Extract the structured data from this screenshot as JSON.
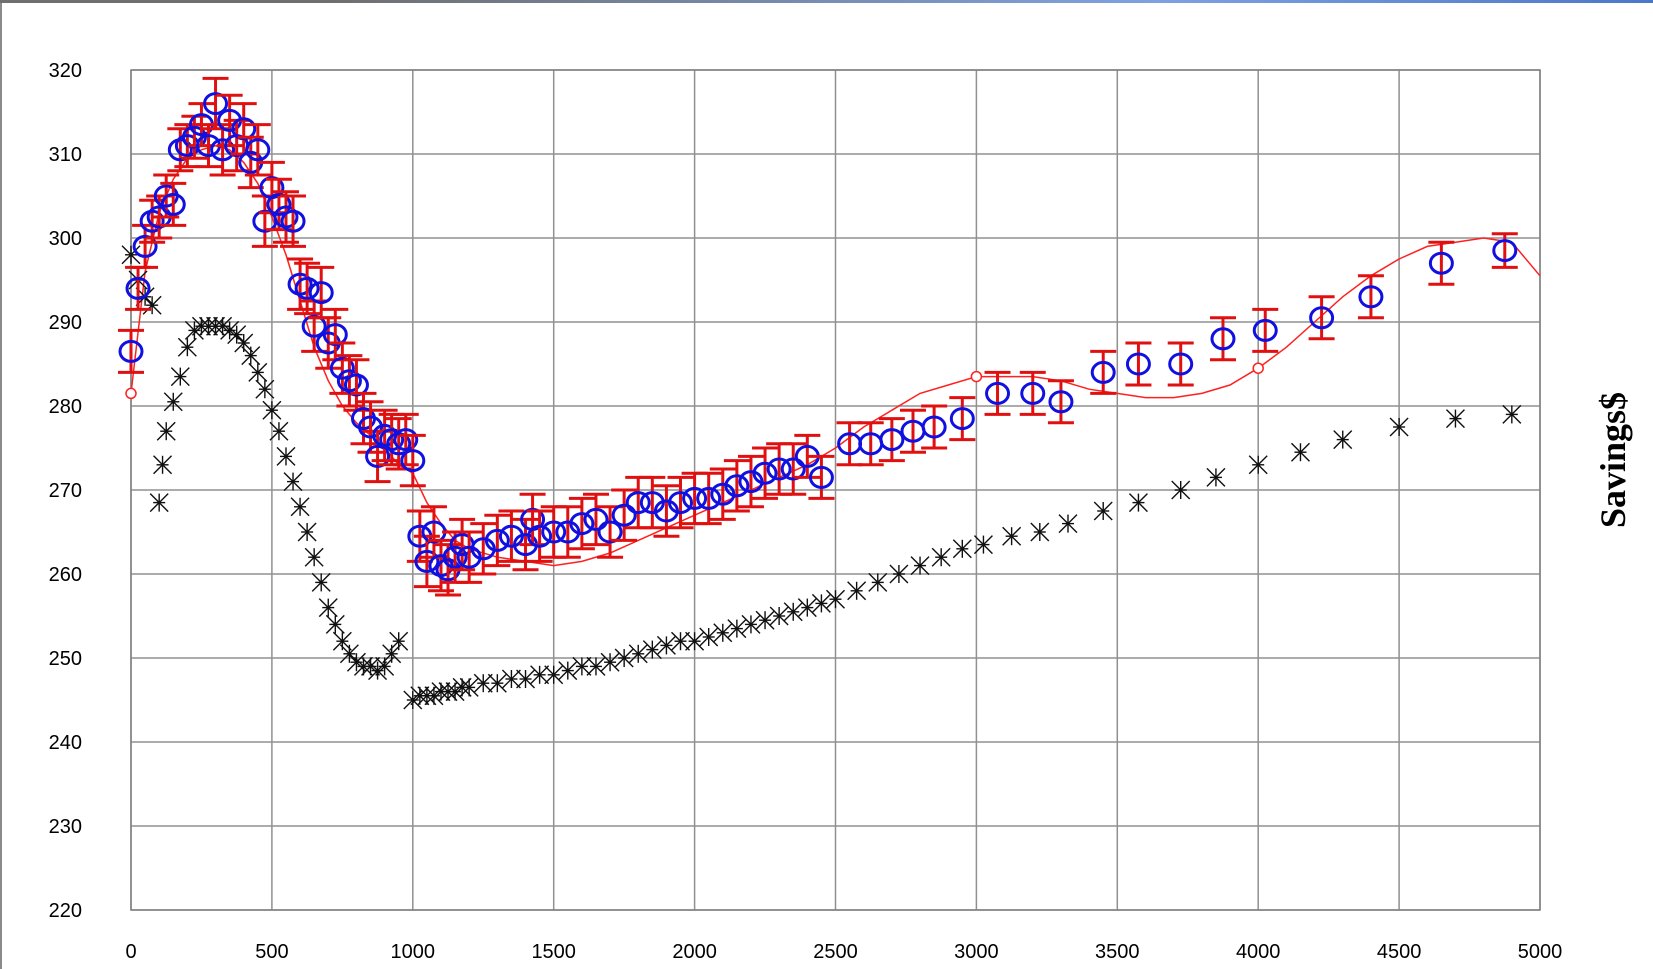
{
  "chart_data": {
    "type": "scatter",
    "ylabel": "Savings$",
    "xlabel": "",
    "title": "",
    "xlim": [
      0,
      5000
    ],
    "ylim": [
      220,
      320
    ],
    "x_ticks": [
      "0",
      "500",
      "1000",
      "1500",
      "2000",
      "2500",
      "3000",
      "3500",
      "4000",
      "4500",
      "5000"
    ],
    "y_ticks": [
      "320",
      "310",
      "300",
      "290",
      "280",
      "270",
      "260",
      "250",
      "240",
      "230",
      "220"
    ],
    "grid": true,
    "legend": "none",
    "colors": {
      "series_blue": "#1010e0",
      "errorbar_red": "#e01010",
      "series_black": "#101010",
      "fit_line": "#ff2020"
    },
    "series": [
      {
        "marker": "open-circle-with-red-error-bar",
        "color": "#1010e0",
        "points": [
          [
            0,
            286.5,
            2.5
          ],
          [
            25,
            294,
            2.5
          ],
          [
            50,
            299,
            2.5
          ],
          [
            75,
            302,
            2.5
          ],
          [
            100,
            302.5,
            2.5
          ],
          [
            125,
            305,
            2.5
          ],
          [
            150,
            304,
            2.5
          ],
          [
            175,
            310.5,
            2.5
          ],
          [
            200,
            311,
            2.5
          ],
          [
            225,
            312,
            2.5
          ],
          [
            250,
            313.5,
            2.5
          ],
          [
            275,
            311,
            2.5
          ],
          [
            300,
            316,
            3.0
          ],
          [
            325,
            310.5,
            3.0
          ],
          [
            350,
            314,
            3.0
          ],
          [
            375,
            311,
            3.0
          ],
          [
            400,
            313,
            3.0
          ],
          [
            425,
            309,
            3.0
          ],
          [
            450,
            310.5,
            3.0
          ],
          [
            475,
            302,
            3.0
          ],
          [
            500,
            306,
            3.0
          ],
          [
            525,
            304,
            3.0
          ],
          [
            550,
            302.5,
            3.0
          ],
          [
            575,
            302,
            3.0
          ],
          [
            600,
            294.5,
            3.0
          ],
          [
            625,
            294,
            3.0
          ],
          [
            650,
            289.5,
            3.0
          ],
          [
            675,
            293.5,
            3.0
          ],
          [
            700,
            287.5,
            3.0
          ],
          [
            725,
            288.5,
            3.0
          ],
          [
            750,
            284.5,
            3.0
          ],
          [
            775,
            283,
            3.0
          ],
          [
            800,
            282.5,
            3.0
          ],
          [
            825,
            278.5,
            3.0
          ],
          [
            850,
            277.5,
            3.0
          ],
          [
            875,
            274,
            3.0
          ],
          [
            900,
            276.5,
            3.0
          ],
          [
            925,
            276,
            3.0
          ],
          [
            950,
            275.5,
            3.0
          ],
          [
            975,
            276,
            3.0
          ],
          [
            1000,
            273.5,
            3.0
          ],
          [
            1025,
            264.5,
            3.0
          ],
          [
            1050,
            261.5,
            3.0
          ],
          [
            1075,
            265,
            3.0
          ],
          [
            1100,
            261,
            3.0
          ],
          [
            1125,
            260.5,
            3.0
          ],
          [
            1150,
            262,
            3.0
          ],
          [
            1175,
            263.5,
            3.0
          ],
          [
            1200,
            262,
            3.0
          ],
          [
            1250,
            263,
            3.0
          ],
          [
            1300,
            264,
            3.0
          ],
          [
            1350,
            264.5,
            3.0
          ],
          [
            1400,
            263.5,
            3.0
          ],
          [
            1425,
            266.5,
            3.0
          ],
          [
            1450,
            264.5,
            3.0
          ],
          [
            1500,
            265,
            3.0
          ],
          [
            1550,
            265,
            3.0
          ],
          [
            1600,
            266,
            3.0
          ],
          [
            1650,
            266.5,
            3.0
          ],
          [
            1700,
            265,
            3.0
          ],
          [
            1750,
            267,
            3.0
          ],
          [
            1800,
            268.5,
            3.0
          ],
          [
            1850,
            268.5,
            3.0
          ],
          [
            1900,
            267.5,
            3.0
          ],
          [
            1950,
            268.5,
            3.0
          ],
          [
            2000,
            269,
            3.0
          ],
          [
            2050,
            269,
            3.0
          ],
          [
            2100,
            269.5,
            3.0
          ],
          [
            2150,
            270.5,
            3.0
          ],
          [
            2200,
            271,
            3.0
          ],
          [
            2250,
            272,
            3.0
          ],
          [
            2300,
            272.5,
            3.0
          ],
          [
            2350,
            272.5,
            3.0
          ],
          [
            2400,
            274,
            2.5
          ],
          [
            2450,
            271.5,
            2.5
          ],
          [
            2550,
            275.5,
            2.5
          ],
          [
            2625,
            275.5,
            2.5
          ],
          [
            2700,
            276,
            2.5
          ],
          [
            2775,
            277,
            2.5
          ],
          [
            2850,
            277.5,
            2.5
          ],
          [
            2950,
            278.5,
            2.5
          ],
          [
            3075,
            281.5,
            2.5
          ],
          [
            3200,
            281.5,
            2.5
          ],
          [
            3300,
            280.5,
            2.5
          ],
          [
            3450,
            284,
            2.5
          ],
          [
            3575,
            285,
            2.5
          ],
          [
            3725,
            285,
            2.5
          ],
          [
            3875,
            288,
            2.5
          ],
          [
            4025,
            289,
            2.5
          ],
          [
            4225,
            290.5,
            2.5
          ],
          [
            4400,
            293,
            2.5
          ],
          [
            4650,
            297,
            2.5
          ],
          [
            4875,
            298.5,
            2.0
          ]
        ]
      },
      {
        "marker": "asterisk-cross",
        "color": "#101010",
        "points": [
          [
            0,
            298
          ],
          [
            25,
            295
          ],
          [
            50,
            293
          ],
          [
            75,
            292
          ],
          [
            100,
            268.5
          ],
          [
            112,
            273
          ],
          [
            125,
            277
          ],
          [
            150,
            280.5
          ],
          [
            175,
            283.5
          ],
          [
            200,
            287
          ],
          [
            225,
            289
          ],
          [
            250,
            289.5
          ],
          [
            275,
            289.5
          ],
          [
            300,
            289.5
          ],
          [
            325,
            289.5
          ],
          [
            350,
            289
          ],
          [
            375,
            288.5
          ],
          [
            400,
            287.5
          ],
          [
            425,
            286
          ],
          [
            450,
            284
          ],
          [
            475,
            282
          ],
          [
            500,
            279.5
          ],
          [
            525,
            277
          ],
          [
            550,
            274
          ],
          [
            575,
            271
          ],
          [
            600,
            268
          ],
          [
            625,
            265
          ],
          [
            650,
            262
          ],
          [
            675,
            259
          ],
          [
            700,
            256
          ],
          [
            725,
            254
          ],
          [
            750,
            252
          ],
          [
            775,
            250.5
          ],
          [
            800,
            249.5
          ],
          [
            825,
            249
          ],
          [
            850,
            249
          ],
          [
            875,
            248.5
          ],
          [
            900,
            249
          ],
          [
            925,
            250.5
          ],
          [
            950,
            252
          ],
          [
            1000,
            245
          ],
          [
            1025,
            245.5
          ],
          [
            1050,
            245.5
          ],
          [
            1075,
            245.5
          ],
          [
            1100,
            246
          ],
          [
            1125,
            246
          ],
          [
            1150,
            246
          ],
          [
            1175,
            246.5
          ],
          [
            1200,
            246.5
          ],
          [
            1250,
            247
          ],
          [
            1300,
            247
          ],
          [
            1350,
            247.5
          ],
          [
            1400,
            247.5
          ],
          [
            1450,
            248
          ],
          [
            1500,
            248
          ],
          [
            1550,
            248.5
          ],
          [
            1600,
            249
          ],
          [
            1650,
            249
          ],
          [
            1700,
            249.5
          ],
          [
            1750,
            250
          ],
          [
            1800,
            250.5
          ],
          [
            1850,
            251
          ],
          [
            1900,
            251.5
          ],
          [
            1950,
            252
          ],
          [
            2000,
            252
          ],
          [
            2050,
            252.5
          ],
          [
            2100,
            253
          ],
          [
            2150,
            253.5
          ],
          [
            2200,
            254
          ],
          [
            2250,
            254.5
          ],
          [
            2300,
            255
          ],
          [
            2350,
            255.5
          ],
          [
            2400,
            256
          ],
          [
            2450,
            256.5
          ],
          [
            2500,
            257
          ],
          [
            2575,
            258
          ],
          [
            2650,
            259
          ],
          [
            2725,
            260
          ],
          [
            2800,
            261
          ],
          [
            2875,
            262
          ],
          [
            2950,
            263
          ],
          [
            3025,
            263.5
          ],
          [
            3125,
            264.5
          ],
          [
            3225,
            265
          ],
          [
            3325,
            266
          ],
          [
            3450,
            267.5
          ],
          [
            3575,
            268.5
          ],
          [
            3725,
            270
          ],
          [
            3850,
            271.5
          ],
          [
            4000,
            273
          ],
          [
            4150,
            274.5
          ],
          [
            4300,
            276
          ],
          [
            4500,
            277.5
          ],
          [
            4700,
            278.5
          ],
          [
            4900,
            279
          ]
        ]
      },
      {
        "marker": "smooth-line",
        "color": "#ff2020",
        "points": [
          [
            0,
            281.5
          ],
          [
            50,
            296
          ],
          [
            100,
            303
          ],
          [
            150,
            307
          ],
          [
            200,
            309.5
          ],
          [
            250,
            310.5
          ],
          [
            300,
            311
          ],
          [
            350,
            310.5
          ],
          [
            400,
            309
          ],
          [
            450,
            306.5
          ],
          [
            500,
            302.5
          ],
          [
            550,
            298
          ],
          [
            600,
            292.5
          ],
          [
            650,
            287
          ],
          [
            700,
            283
          ],
          [
            750,
            280
          ],
          [
            800,
            278
          ],
          [
            850,
            276.5
          ],
          [
            900,
            275
          ],
          [
            950,
            273
          ],
          [
            1000,
            272
          ],
          [
            1050,
            268.5
          ],
          [
            1100,
            266
          ],
          [
            1150,
            264
          ],
          [
            1200,
            263
          ],
          [
            1300,
            262
          ],
          [
            1400,
            261.5
          ],
          [
            1500,
            261
          ],
          [
            1600,
            261.5
          ],
          [
            1700,
            262.5
          ],
          [
            1800,
            264
          ],
          [
            1900,
            265.5
          ],
          [
            2000,
            267
          ],
          [
            2100,
            268.5
          ],
          [
            2200,
            270
          ],
          [
            2300,
            271.5
          ],
          [
            2400,
            273
          ],
          [
            2500,
            275
          ],
          [
            2600,
            277.5
          ],
          [
            2700,
            279.5
          ],
          [
            2800,
            281.5
          ],
          [
            2900,
            282.5
          ],
          [
            3000,
            283.5
          ],
          [
            3100,
            283.5
          ],
          [
            3200,
            283.5
          ],
          [
            3300,
            283
          ],
          [
            3400,
            282
          ],
          [
            3500,
            281.5
          ],
          [
            3600,
            281
          ],
          [
            3700,
            281
          ],
          [
            3800,
            281.5
          ],
          [
            3900,
            282.5
          ],
          [
            4000,
            284.5
          ],
          [
            4100,
            287
          ],
          [
            4200,
            290
          ],
          [
            4300,
            293
          ],
          [
            4400,
            295.5
          ],
          [
            4500,
            297.5
          ],
          [
            4600,
            299
          ],
          [
            4700,
            299.5
          ],
          [
            4800,
            300
          ],
          [
            4900,
            299.5
          ],
          [
            5000,
            295.5
          ]
        ],
        "marked_points": [
          [
            0,
            281.5
          ],
          [
            3000,
            283.5
          ],
          [
            4000,
            284.5
          ]
        ]
      }
    ]
  }
}
